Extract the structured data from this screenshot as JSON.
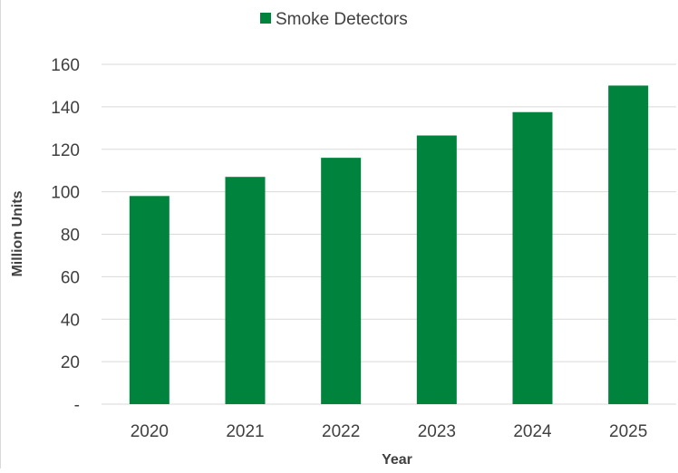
{
  "chart_data": {
    "type": "bar",
    "categories": [
      "2020",
      "2021",
      "2022",
      "2023",
      "2024",
      "2025"
    ],
    "series": [
      {
        "name": "Smoke Detectors",
        "values": [
          98,
          107,
          116,
          126.5,
          137.5,
          150
        ],
        "color": "#00843D"
      }
    ],
    "xlabel": "Year",
    "ylabel": "Million Units",
    "ylim": [
      0,
      160
    ],
    "yticks": [
      0,
      20,
      40,
      60,
      80,
      100,
      120,
      140,
      160
    ],
    "ytick_labels": [
      "-",
      "20",
      "40",
      "60",
      "80",
      "100",
      "120",
      "140",
      "160"
    ],
    "grid": true,
    "legend": "top-center",
    "gridline_color": "#d9d9d9"
  }
}
